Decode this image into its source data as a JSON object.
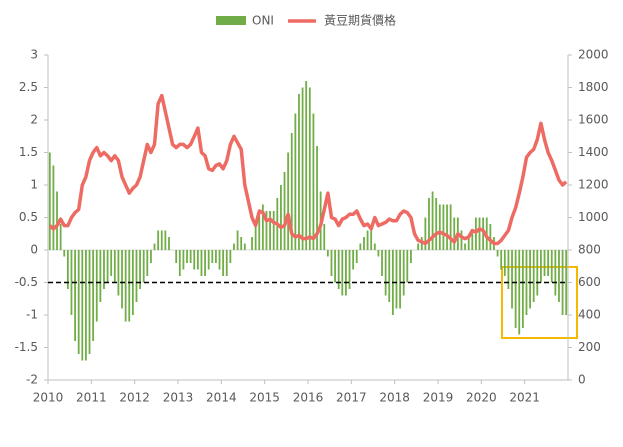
{
  "chart_data": {
    "type": "bar",
    "categories": [
      "2010",
      null,
      null,
      null,
      null,
      null,
      null,
      null,
      null,
      null,
      null,
      null,
      "2011",
      null,
      null,
      null,
      null,
      null,
      null,
      null,
      null,
      null,
      null,
      null,
      "2012",
      null,
      null,
      null,
      null,
      null,
      null,
      null,
      null,
      null,
      null,
      null,
      "2013",
      null,
      null,
      null,
      null,
      null,
      null,
      null,
      null,
      null,
      null,
      null,
      "2014",
      null,
      null,
      null,
      null,
      null,
      null,
      null,
      null,
      null,
      null,
      null,
      "2015",
      null,
      null,
      null,
      null,
      null,
      null,
      null,
      null,
      null,
      null,
      null,
      "2016",
      null,
      null,
      null,
      null,
      null,
      null,
      null,
      null,
      null,
      null,
      null,
      "2017",
      null,
      null,
      null,
      null,
      null,
      null,
      null,
      null,
      null,
      null,
      null,
      "2018",
      null,
      null,
      null,
      null,
      null,
      null,
      null,
      null,
      null,
      null,
      null,
      "2019",
      null,
      null,
      null,
      null,
      null,
      null,
      null,
      null,
      null,
      null,
      null,
      "2020",
      null,
      null,
      null,
      null,
      null,
      null,
      null,
      null,
      null,
      null,
      null,
      "2021",
      null,
      null,
      null,
      null,
      null,
      null,
      null,
      null,
      null,
      null,
      null
    ],
    "series": [
      {
        "name": "ONI",
        "type": "bar",
        "color": "#70ad47",
        "values": [
          1.5,
          1.3,
          0.9,
          0.4,
          -0.1,
          -0.6,
          -1.0,
          -1.4,
          -1.6,
          -1.7,
          -1.7,
          -1.6,
          -1.4,
          -1.1,
          -0.8,
          -0.6,
          -0.5,
          -0.4,
          -0.5,
          -0.7,
          -0.9,
          -1.1,
          -1.1,
          -1.0,
          -0.8,
          -0.6,
          -0.5,
          -0.4,
          -0.2,
          0.1,
          0.3,
          0.3,
          0.3,
          0.2,
          0.0,
          -0.2,
          -0.4,
          -0.3,
          -0.2,
          -0.2,
          -0.3,
          -0.3,
          -0.4,
          -0.4,
          -0.3,
          -0.2,
          -0.2,
          -0.3,
          -0.4,
          -0.4,
          -0.2,
          0.1,
          0.3,
          0.2,
          0.1,
          0.0,
          0.2,
          0.4,
          0.6,
          0.7,
          0.6,
          0.6,
          0.6,
          0.8,
          1.0,
          1.2,
          1.5,
          1.8,
          2.1,
          2.4,
          2.5,
          2.6,
          2.5,
          2.1,
          1.6,
          0.9,
          0.4,
          -0.1,
          -0.4,
          -0.5,
          -0.6,
          -0.7,
          -0.7,
          -0.6,
          -0.3,
          -0.2,
          0.1,
          0.2,
          0.3,
          0.3,
          0.1,
          -0.1,
          -0.4,
          -0.7,
          -0.8,
          -1.0,
          -0.9,
          -0.9,
          -0.7,
          -0.5,
          -0.2,
          0.0,
          0.1,
          0.2,
          0.5,
          0.8,
          0.9,
          0.8,
          0.7,
          0.7,
          0.7,
          0.7,
          0.5,
          0.5,
          0.3,
          0.1,
          0.2,
          0.3,
          0.5,
          0.5,
          0.5,
          0.5,
          0.4,
          0.2,
          -0.1,
          -0.3,
          -0.4,
          -0.6,
          -0.9,
          -1.2,
          -1.3,
          -1.2,
          -1.0,
          -0.9,
          -0.8,
          -0.7,
          -0.5,
          -0.4,
          -0.4,
          -0.5,
          -0.7,
          -0.8,
          -1.0,
          -1.0
        ]
      },
      {
        "name": "黃豆期貨價格",
        "type": "line",
        "axis": "y2",
        "color": "#ee6b63",
        "values": [
          950,
          930,
          950,
          990,
          950,
          950,
          1000,
          1030,
          1050,
          1200,
          1250,
          1350,
          1400,
          1430,
          1380,
          1400,
          1380,
          1350,
          1380,
          1350,
          1250,
          1200,
          1150,
          1180,
          1200,
          1250,
          1350,
          1450,
          1400,
          1450,
          1700,
          1750,
          1650,
          1550,
          1450,
          1430,
          1450,
          1450,
          1430,
          1450,
          1500,
          1550,
          1400,
          1380,
          1300,
          1290,
          1320,
          1330,
          1300,
          1350,
          1450,
          1500,
          1460,
          1420,
          1200,
          1100,
          1000,
          950,
          1040,
          1030,
          980,
          990,
          970,
          960,
          940,
          950,
          1020,
          900,
          880,
          890,
          870,
          870,
          880,
          870,
          900,
          950,
          1050,
          1150,
          1000,
          990,
          950,
          990,
          1000,
          1020,
          1020,
          1040,
          990,
          950,
          960,
          930,
          1000,
          950,
          960,
          970,
          990,
          980,
          980,
          1020,
          1040,
          1030,
          1000,
          900,
          860,
          850,
          840,
          860,
          880,
          900,
          910,
          900,
          890,
          870,
          850,
          900,
          880,
          870,
          880,
          920,
          910,
          930,
          920,
          880,
          860,
          840,
          840,
          860,
          890,
          920,
          1000,
          1060,
          1150,
          1250,
          1370,
          1400,
          1420,
          1480,
          1580,
          1480,
          1400,
          1350,
          1290,
          1230,
          1200,
          1220
        ]
      }
    ],
    "ylim": [
      -2,
      3
    ],
    "yticks": [
      -2,
      -1.5,
      -1,
      -0.5,
      0,
      0.5,
      1,
      1.5,
      2,
      2.5,
      3
    ],
    "y2lim": [
      0,
      2000
    ],
    "y2ticks": [
      0,
      200,
      400,
      600,
      800,
      1000,
      1200,
      1400,
      1600,
      1800,
      2000
    ],
    "threshold": -0.5,
    "legend": "top"
  }
}
